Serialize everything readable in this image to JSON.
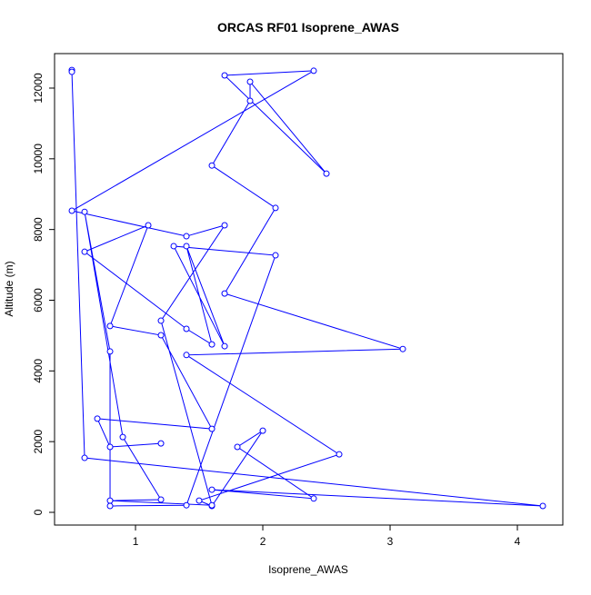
{
  "chart_data": {
    "type": "line",
    "title": "ORCAS RF01 Isoprene_AWAS",
    "x_label": "Isoprene_AWAS",
    "y_label": "Altitude (m)",
    "x": [
      0.5,
      0.5,
      0.6,
      4.2,
      1.6,
      2.4,
      1.8,
      2.0,
      1.6,
      1.5,
      2.6,
      1.4,
      3.1,
      1.7,
      2.1,
      1.6,
      1.9,
      1.9,
      2.5,
      1.7,
      2.4,
      0.5,
      1.4,
      1.7,
      1.2,
      1.6,
      0.8,
      1.2,
      0.9,
      0.6,
      0.8,
      0.8,
      1.4,
      2.1,
      1.3,
      1.7,
      1.4,
      1.6,
      1.4,
      0.6,
      1.1,
      0.8,
      1.2,
      1.6,
      0.7,
      0.8,
      1.2
    ],
    "series": [
      {
        "name": "Altitude",
        "color": "#0000ff",
        "values": [
          12510,
          12460,
          1540,
          180,
          640,
          390,
          1850,
          2310,
          180,
          330,
          1640,
          4450,
          4620,
          6190,
          8610,
          9810,
          11640,
          12180,
          9580,
          12360,
          12490,
          8530,
          7810,
          8120,
          5420,
          200,
          330,
          360,
          2130,
          8500,
          4550,
          180,
          200,
          7270,
          7530,
          4700,
          7530,
          4750,
          5190,
          7370,
          8120,
          5270,
          5010,
          2360,
          2650,
          1850,
          1950
        ]
      }
    ],
    "xlim": [
      0.364,
      4.357
    ],
    "ylim": [
      -360,
      12976
    ],
    "xticks": [
      1,
      2,
      3,
      4
    ],
    "yticks": [
      0,
      2000,
      4000,
      6000,
      8000,
      10000,
      12000
    ]
  }
}
